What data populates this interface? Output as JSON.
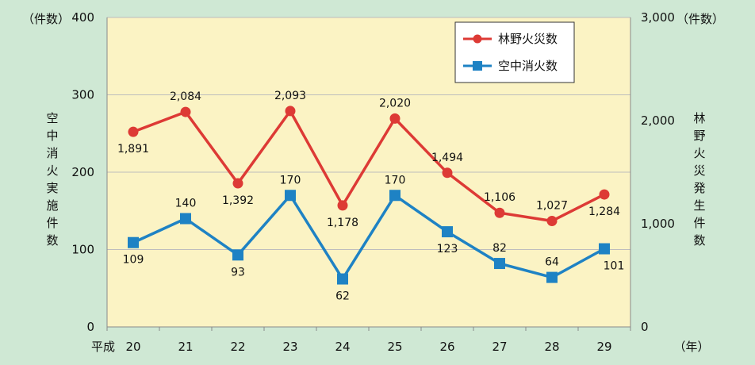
{
  "chart_data": {
    "type": "line",
    "categories": [
      "20",
      "21",
      "22",
      "23",
      "24",
      "25",
      "26",
      "27",
      "28",
      "29"
    ],
    "x_prefix": "平成",
    "x_unit": "（年）",
    "left_axis": {
      "unit": "（件数）",
      "label": "空中消火実施件数",
      "ylim": [
        0,
        400
      ],
      "ticks": [
        "0",
        "100",
        "200",
        "300",
        "400"
      ]
    },
    "right_axis": {
      "unit": "（件数）",
      "label": "林野火災発生件数",
      "ylim": [
        0,
        3000
      ],
      "ticks": [
        "0",
        "1,000",
        "2,000",
        "3,000"
      ]
    },
    "series": [
      {
        "name": "林野火災数",
        "axis": "right",
        "color": "#dd3a35",
        "marker": "circle",
        "values": [
          1891,
          2084,
          1392,
          2093,
          1178,
          2020,
          1494,
          1106,
          1027,
          1284
        ],
        "labels": [
          "1,891",
          "2,084",
          "1,392",
          "2,093",
          "1,178",
          "2,020",
          "1,494",
          "1,106",
          "1,027",
          "1,284"
        ]
      },
      {
        "name": "空中消火数",
        "axis": "left",
        "color": "#1e82c4",
        "marker": "square",
        "values": [
          109,
          140,
          93,
          170,
          62,
          170,
          123,
          82,
          64,
          101
        ],
        "labels": [
          "109",
          "140",
          "93",
          "170",
          "62",
          "170",
          "123",
          "82",
          "64",
          "101"
        ]
      }
    ],
    "grid": true,
    "plot_background": "#fbf3c4",
    "legend": "top-right"
  }
}
